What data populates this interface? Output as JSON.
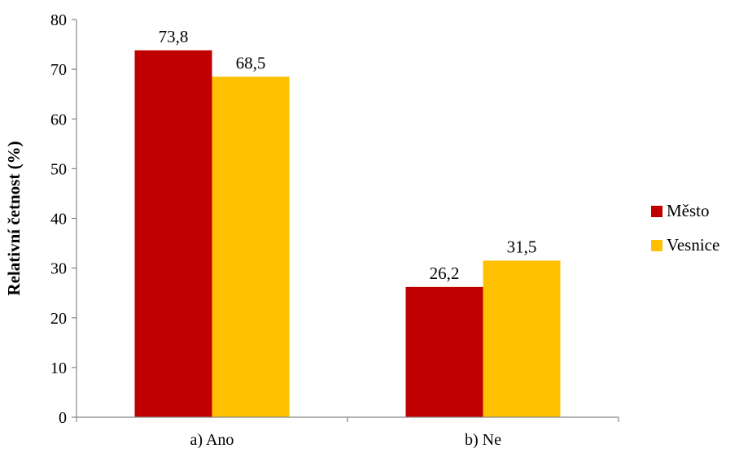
{
  "chart_data": {
    "type": "bar",
    "title": "",
    "xlabel": "",
    "ylabel": "Relativní četnost (%)",
    "categories": [
      "a) Ano",
      "b) Ne"
    ],
    "series": [
      {
        "name": "Město",
        "color": "#C00000",
        "values": [
          73.8,
          26.2
        ],
        "labels": [
          "73,8",
          "26,2"
        ]
      },
      {
        "name": "Vesnice",
        "color": "#FFC000",
        "values": [
          68.5,
          31.5
        ],
        "labels": [
          "68,5",
          "31,5"
        ]
      }
    ],
    "ylim": [
      0,
      80
    ],
    "yticks": [
      "0",
      "10",
      "20",
      "30",
      "40",
      "50",
      "60",
      "70",
      "80"
    ],
    "grid": false,
    "legend_position": "right"
  }
}
